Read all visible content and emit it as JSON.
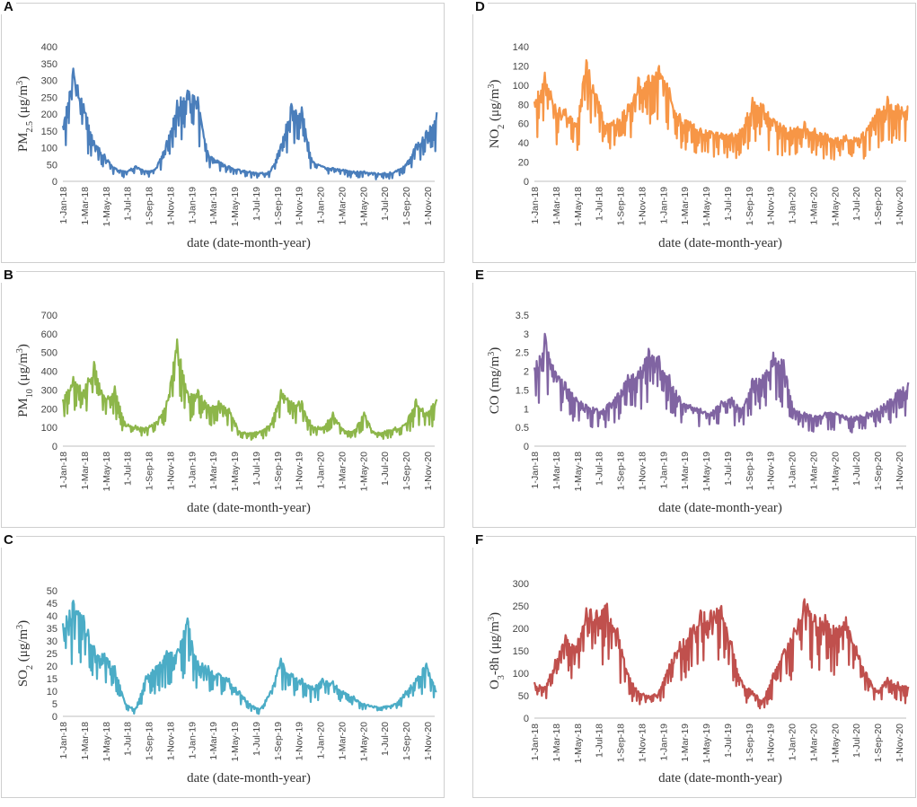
{
  "chart_data": [
    {
      "panel": "A",
      "type": "line",
      "color": "#4a7ebb",
      "ylabel_parts": [
        "PM",
        "2.5",
        " (μg/m",
        "3",
        ")"
      ],
      "xlabel": "date (date-month-year)",
      "yticks": [
        "0",
        "50",
        "100",
        "150",
        "200",
        "250",
        "300",
        "350",
        "400"
      ],
      "ylim": [
        0,
        400
      ],
      "xticks": [
        "1-Jan-18",
        "1-Mar-18",
        "1-May-18",
        "1-Jul-18",
        "1-Sep-18",
        "1-Nov-18",
        "1-Jan-19",
        "1-Mar-19",
        "1-May-19",
        "1-Jul-19",
        "1-Sep-19",
        "1-Nov-19",
        "1-Jan-20",
        "1-Mar-20",
        "1-May-20",
        "1-Jul-20",
        "1-Sep-20",
        "1-Nov-20"
      ],
      "series": [
        {
          "name": "PM2.5",
          "x": [
            0,
            0.5,
            1,
            1.5,
            2,
            2.5,
            3,
            3.5,
            4,
            4.5,
            5,
            5.5,
            6,
            6.5,
            7,
            7.5,
            8,
            8.5,
            9,
            9.5,
            10,
            10.5,
            11,
            11.5,
            12,
            12.5,
            13,
            13.5,
            14,
            14.5,
            15,
            15.5,
            16,
            16.5,
            17,
            17.5,
            18
          ],
          "values": [
            165,
            335,
            230,
            120,
            80,
            40,
            30,
            45,
            30,
            40,
            120,
            240,
            270,
            250,
            80,
            60,
            45,
            35,
            30,
            25,
            30,
            110,
            230,
            220,
            60,
            45,
            40,
            35,
            30,
            30,
            25,
            25,
            30,
            50,
            110,
            150,
            205
          ]
        }
      ]
    },
    {
      "panel": "B",
      "type": "line",
      "color": "#8db64a",
      "ylabel_parts": [
        "PM",
        "10",
        " (μg/m",
        "3",
        ")"
      ],
      "xlabel": "date (date-month-year)",
      "yticks": [
        "0",
        "100",
        "200",
        "300",
        "400",
        "500",
        "600",
        "700"
      ],
      "ylim": [
        0,
        700
      ],
      "xticks": [
        "1-Jan-18",
        "1-Mar-18",
        "1-May-18",
        "1-Jul-18",
        "1-Sep-18",
        "1-Nov-18",
        "1-Jan-19",
        "1-Mar-19",
        "1-May-19",
        "1-Jul-19",
        "1-Sep-19",
        "1-Nov-19",
        "1-Jan-20",
        "1-Mar-20",
        "1-May-20",
        "1-Jul-20",
        "1-Sep-20",
        "1-Nov-20"
      ],
      "series": [
        {
          "name": "PM10",
          "x": [
            0,
            0.5,
            1,
            1.5,
            2,
            2.5,
            3,
            3.5,
            4,
            4.5,
            5,
            5.5,
            6,
            6.5,
            7,
            7.5,
            8,
            8.5,
            9,
            9.5,
            10,
            10.5,
            11,
            11.5,
            12,
            12.5,
            13,
            13.5,
            14,
            14.5,
            15,
            15.5,
            16,
            16.5,
            17,
            17.5,
            18
          ],
          "values": [
            250,
            370,
            300,
            450,
            260,
            320,
            120,
            110,
            100,
            130,
            240,
            570,
            290,
            300,
            220,
            240,
            200,
            80,
            70,
            80,
            120,
            300,
            240,
            240,
            110,
            100,
            180,
            90,
            80,
            180,
            70,
            80,
            100,
            120,
            250,
            180,
            250
          ]
        }
      ]
    },
    {
      "panel": "C",
      "type": "line",
      "color": "#4bacc6",
      "ylabel_parts": [
        "SO",
        "2",
        " (μg/m",
        "3",
        ")"
      ],
      "xlabel": "date (date-month-year)",
      "yticks": [
        "0",
        "5",
        "10",
        "15",
        "20",
        "25",
        "30",
        "35",
        "40",
        "45",
        "50"
      ],
      "ylim": [
        0,
        50
      ],
      "xticks": [
        "1-Jan-18",
        "1-Mar-18",
        "1-May-18",
        "1-Jul-18",
        "1-Sep-18",
        "1-Nov-18",
        "1-Jan-19",
        "1-Mar-19",
        "1-May-19",
        "1-Jul-19",
        "1-Sep-19",
        "1-Nov-19",
        "1-Jan-20",
        "1-Mar-20",
        "1-May-20",
        "1-Jul-20",
        "1-Sep-20",
        "1-Nov-20"
      ],
      "series": [
        {
          "name": "SO2",
          "x": [
            0,
            0.5,
            1,
            1.5,
            2,
            2.5,
            3,
            3.5,
            4,
            4.5,
            5,
            5.5,
            6,
            6.5,
            7,
            7.5,
            8,
            8.5,
            9,
            9.5,
            10,
            10.5,
            11,
            11.5,
            12,
            12.5,
            13,
            13.5,
            14,
            14.5,
            15,
            15.5,
            16,
            16.5,
            17,
            17.5,
            18
          ],
          "values": [
            37,
            46,
            40,
            28,
            25,
            20,
            5,
            3,
            16,
            20,
            26,
            26,
            39,
            22,
            20,
            17,
            15,
            10,
            5,
            3,
            10,
            23,
            17,
            15,
            12,
            15,
            14,
            10,
            8,
            5,
            4,
            4,
            5,
            10,
            15,
            21,
            10
          ]
        }
      ]
    },
    {
      "panel": "D",
      "type": "line",
      "color": "#f79646",
      "ylabel_parts": [
        "NO",
        "2",
        " (μg/m",
        "3",
        ")"
      ],
      "xlabel": "date (date-month-year)",
      "yticks": [
        "0",
        "20",
        "40",
        "60",
        "80",
        "100",
        "120",
        "140"
      ],
      "ylim": [
        0,
        140
      ],
      "xticks": [
        "1-Jan-18",
        "1-Mar-18",
        "1-May-18",
        "1-Jul-18",
        "1-Sep-18",
        "1-Nov-18",
        "1-Jan-19",
        "1-Mar-19",
        "1-May-19",
        "1-Jul-19",
        "1-Sep-19",
        "1-Nov-19",
        "1-Jan-20",
        "1-Mar-20",
        "1-May-20",
        "1-Jul-20",
        "1-Sep-20",
        "1-Nov-20"
      ],
      "series": [
        {
          "name": "NO2",
          "x": [
            0,
            0.5,
            1,
            1.5,
            2,
            2.5,
            3,
            3.5,
            4,
            4.5,
            5,
            5.5,
            6,
            6.5,
            7,
            7.5,
            8,
            8.5,
            9,
            9.5,
            10,
            10.5,
            11,
            11.5,
            12,
            12.5,
            13,
            13.5,
            14,
            14.5,
            15,
            15.5,
            16,
            16.5,
            17,
            17.5,
            18
          ],
          "values": [
            83,
            113,
            80,
            75,
            60,
            126,
            90,
            60,
            65,
            80,
            108,
            110,
            120,
            97,
            70,
            62,
            55,
            52,
            50,
            50,
            55,
            87,
            80,
            65,
            58,
            55,
            62,
            55,
            50,
            45,
            48,
            45,
            55,
            75,
            88,
            80,
            78
          ]
        }
      ]
    },
    {
      "panel": "E",
      "type": "line",
      "color": "#8064a2",
      "ylabel_parts": [
        "CO (mg/m",
        "3",
        ")"
      ],
      "xlabel": "date (date-month-year)",
      "yticks": [
        "0",
        "0.5",
        "1",
        "1.5",
        "2",
        "2.5",
        "3",
        "3.5"
      ],
      "ylim": [
        0,
        3.5
      ],
      "xticks": [
        "1-Jan-18",
        "1-Mar-18",
        "1-May-18",
        "1-Jul-18",
        "1-Sep-18",
        "1-Nov-18",
        "1-Jan-19",
        "1-Mar-19",
        "1-May-19",
        "1-Jul-19",
        "1-Sep-19",
        "1-Nov-19",
        "1-Jan-20",
        "1-Mar-20",
        "1-May-20",
        "1-Jul-20",
        "1-Sep-20",
        "1-Nov-20"
      ],
      "series": [
        {
          "name": "CO",
          "x": [
            0,
            0.5,
            1,
            1.5,
            2,
            2.5,
            3,
            3.5,
            4,
            4.5,
            5,
            5.5,
            6,
            6.5,
            7,
            7.5,
            8,
            8.5,
            9,
            9.5,
            10,
            10.5,
            11,
            11.5,
            12,
            12.5,
            13,
            13.5,
            14,
            14.5,
            15,
            15.5,
            16,
            16.5,
            17,
            17.5,
            18
          ],
          "values": [
            2.1,
            3.0,
            2.0,
            1.7,
            1.3,
            1.1,
            1.0,
            1.1,
            1.4,
            1.9,
            2.0,
            2.6,
            2.4,
            1.9,
            1.3,
            1.1,
            1.0,
            0.9,
            1.2,
            1.3,
            1.0,
            1.8,
            1.9,
            2.5,
            2.3,
            1.0,
            0.9,
            0.8,
            0.9,
            0.9,
            0.8,
            0.8,
            0.9,
            1.0,
            1.2,
            1.5,
            1.7
          ]
        }
      ]
    },
    {
      "panel": "F",
      "type": "line",
      "color": "#c0504d",
      "ylabel_parts": [
        "O",
        "3",
        "-8h (μg/m",
        "3",
        ")"
      ],
      "xlabel": "date (date-month-year)",
      "yticks": [
        "0",
        "50",
        "100",
        "150",
        "200",
        "250",
        "300"
      ],
      "ylim": [
        0,
        300
      ],
      "xticks": [
        "1-Jan-18",
        "1-Mar-18",
        "1-May-18",
        "1-Jul-18",
        "1-Sep-18",
        "1-Nov-18",
        "1-Jan-19",
        "1-Mar-19",
        "1-May-19",
        "1-Jul-19",
        "1-Sep-19",
        "1-Nov-19",
        "1-Jan-20",
        "1-Mar-20",
        "1-May-20",
        "1-Jul-20",
        "1-Sep-20",
        "1-Nov-20"
      ],
      "series": [
        {
          "name": "O3-8h",
          "x": [
            0,
            0.5,
            1,
            1.5,
            2,
            2.5,
            3,
            3.5,
            4,
            4.5,
            5,
            5.5,
            6,
            6.5,
            7,
            7.5,
            8,
            8.5,
            9,
            9.5,
            10,
            10.5,
            11,
            11.5,
            12,
            12.5,
            13,
            13.5,
            14,
            14.5,
            15,
            15.5,
            16,
            16.5,
            17,
            17.5,
            18
          ],
          "values": [
            80,
            70,
            130,
            185,
            160,
            245,
            240,
            255,
            200,
            100,
            60,
            50,
            60,
            120,
            170,
            200,
            240,
            240,
            250,
            170,
            80,
            60,
            40,
            100,
            150,
            200,
            265,
            230,
            230,
            200,
            225,
            160,
            100,
            60,
            90,
            80,
            70
          ]
        }
      ]
    }
  ]
}
